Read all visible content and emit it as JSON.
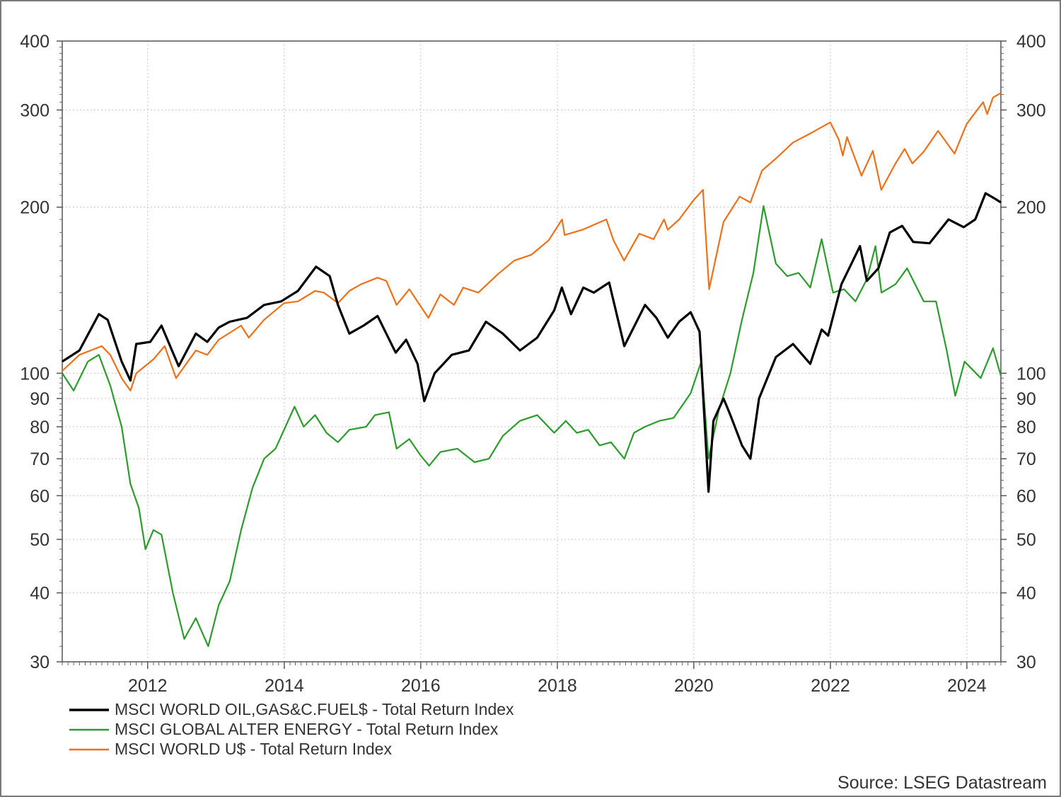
{
  "chart_data": {
    "type": "line",
    "title": "",
    "xlabel": "",
    "ylabel": "",
    "y_scale": "log",
    "ylim": [
      30,
      400
    ],
    "xlim": [
      "2010-10-01",
      "2024-07-01"
    ],
    "y_ticks": [
      "30",
      "40",
      "50",
      "60",
      "70",
      "80",
      "90",
      "100",
      "200",
      "300",
      "400"
    ],
    "x_ticks": [
      "2012",
      "2014",
      "2016",
      "2018",
      "2020",
      "2022",
      "2024"
    ],
    "grid": true,
    "legend_position": "bottom-left",
    "series": [
      {
        "name": "MSCI WORLD OIL,GAS&C.FUEL$ - Total Return Index",
        "color": "#000000",
        "points": [
          [
            "2010-10-01",
            105
          ],
          [
            "2011-01-01",
            110
          ],
          [
            "2011-04-15",
            128
          ],
          [
            "2011-06-01",
            125
          ],
          [
            "2011-08-15",
            105
          ],
          [
            "2011-10-01",
            97
          ],
          [
            "2011-11-01",
            113
          ],
          [
            "2012-01-15",
            114
          ],
          [
            "2012-03-15",
            122
          ],
          [
            "2012-06-15",
            103
          ],
          [
            "2012-09-15",
            118
          ],
          [
            "2012-11-15",
            114
          ],
          [
            "2013-01-15",
            121
          ],
          [
            "2013-03-15",
            124
          ],
          [
            "2013-06-15",
            126
          ],
          [
            "2013-09-15",
            133
          ],
          [
            "2013-12-15",
            135
          ],
          [
            "2014-03-15",
            141
          ],
          [
            "2014-06-20",
            156
          ],
          [
            "2014-09-01",
            150
          ],
          [
            "2014-10-15",
            133
          ],
          [
            "2014-12-15",
            118
          ],
          [
            "2015-03-01",
            122
          ],
          [
            "2015-05-15",
            127
          ],
          [
            "2015-08-20",
            109
          ],
          [
            "2015-10-15",
            115
          ],
          [
            "2015-12-15",
            104
          ],
          [
            "2016-01-20",
            89
          ],
          [
            "2016-03-15",
            100
          ],
          [
            "2016-06-15",
            108
          ],
          [
            "2016-09-15",
            110
          ],
          [
            "2016-12-15",
            124
          ],
          [
            "2017-03-15",
            118
          ],
          [
            "2017-06-15",
            110
          ],
          [
            "2017-09-15",
            116
          ],
          [
            "2017-12-15",
            130
          ],
          [
            "2018-01-25",
            143
          ],
          [
            "2018-03-15",
            128
          ],
          [
            "2018-05-20",
            143
          ],
          [
            "2018-07-15",
            140
          ],
          [
            "2018-10-05",
            146
          ],
          [
            "2018-12-25",
            112
          ],
          [
            "2019-04-15",
            133
          ],
          [
            "2019-06-15",
            126
          ],
          [
            "2019-08-15",
            116
          ],
          [
            "2019-10-15",
            124
          ],
          [
            "2019-12-15",
            129
          ],
          [
            "2020-02-01",
            119
          ],
          [
            "2020-03-20",
            61
          ],
          [
            "2020-04-15",
            82
          ],
          [
            "2020-06-08",
            90
          ],
          [
            "2020-07-15",
            84
          ],
          [
            "2020-09-15",
            74
          ],
          [
            "2020-10-30",
            70
          ],
          [
            "2020-12-15",
            90
          ],
          [
            "2021-03-15",
            107
          ],
          [
            "2021-06-15",
            113
          ],
          [
            "2021-09-15",
            104
          ],
          [
            "2021-11-15",
            120
          ],
          [
            "2021-12-20",
            117
          ],
          [
            "2022-03-01",
            145
          ],
          [
            "2022-06-08",
            170
          ],
          [
            "2022-07-15",
            147
          ],
          [
            "2022-09-15",
            155
          ],
          [
            "2022-11-15",
            180
          ],
          [
            "2023-01-20",
            185
          ],
          [
            "2023-03-20",
            173
          ],
          [
            "2023-06-15",
            172
          ],
          [
            "2023-09-25",
            190
          ],
          [
            "2023-12-15",
            184
          ],
          [
            "2024-02-15",
            190
          ],
          [
            "2024-04-10",
            212
          ],
          [
            "2024-06-01",
            207
          ],
          [
            "2024-07-01",
            204
          ]
        ]
      },
      {
        "name": "MSCI GLOBAL ALTER ENERGY - Total Return Index",
        "color": "#2a9d2a",
        "points": [
          [
            "2010-10-01",
            100
          ],
          [
            "2010-12-01",
            93
          ],
          [
            "2011-02-15",
            105
          ],
          [
            "2011-04-15",
            108
          ],
          [
            "2011-06-15",
            95
          ],
          [
            "2011-08-15",
            80
          ],
          [
            "2011-10-01",
            63
          ],
          [
            "2011-11-15",
            57
          ],
          [
            "2011-12-20",
            48
          ],
          [
            "2012-02-01",
            52
          ],
          [
            "2012-03-15",
            51
          ],
          [
            "2012-05-15",
            40
          ],
          [
            "2012-07-15",
            33
          ],
          [
            "2012-09-15",
            36
          ],
          [
            "2012-11-20",
            32
          ],
          [
            "2013-01-15",
            38
          ],
          [
            "2013-03-15",
            42
          ],
          [
            "2013-05-15",
            52
          ],
          [
            "2013-07-15",
            62
          ],
          [
            "2013-09-15",
            70
          ],
          [
            "2013-11-15",
            73
          ],
          [
            "2014-02-25",
            87
          ],
          [
            "2014-04-15",
            80
          ],
          [
            "2014-06-15",
            84
          ],
          [
            "2014-08-15",
            78
          ],
          [
            "2014-10-15",
            75
          ],
          [
            "2014-12-15",
            79
          ],
          [
            "2015-03-15",
            80
          ],
          [
            "2015-05-01",
            84
          ],
          [
            "2015-07-15",
            85
          ],
          [
            "2015-08-25",
            73
          ],
          [
            "2015-11-01",
            76
          ],
          [
            "2015-12-31",
            71
          ],
          [
            "2016-02-15",
            68
          ],
          [
            "2016-04-15",
            72
          ],
          [
            "2016-07-15",
            73
          ],
          [
            "2016-10-15",
            69
          ],
          [
            "2016-12-31",
            70
          ],
          [
            "2017-03-15",
            77
          ],
          [
            "2017-06-15",
            82
          ],
          [
            "2017-09-15",
            84
          ],
          [
            "2017-12-15",
            78
          ],
          [
            "2018-02-15",
            82
          ],
          [
            "2018-04-15",
            78
          ],
          [
            "2018-06-15",
            79
          ],
          [
            "2018-08-15",
            74
          ],
          [
            "2018-10-15",
            75
          ],
          [
            "2018-12-25",
            70
          ],
          [
            "2019-02-15",
            78
          ],
          [
            "2019-04-15",
            80
          ],
          [
            "2019-07-01",
            82
          ],
          [
            "2019-09-15",
            83
          ],
          [
            "2019-12-15",
            92
          ],
          [
            "2020-02-10",
            105
          ],
          [
            "2020-03-20",
            70
          ],
          [
            "2020-05-15",
            86
          ],
          [
            "2020-07-15",
            100
          ],
          [
            "2020-09-15",
            125
          ],
          [
            "2020-11-15",
            152
          ],
          [
            "2021-01-08",
            201
          ],
          [
            "2021-03-15",
            158
          ],
          [
            "2021-05-15",
            150
          ],
          [
            "2021-07-15",
            152
          ],
          [
            "2021-09-15",
            143
          ],
          [
            "2021-11-15",
            175
          ],
          [
            "2022-01-15",
            140
          ],
          [
            "2022-03-15",
            142
          ],
          [
            "2022-05-15",
            135
          ],
          [
            "2022-07-15",
            148
          ],
          [
            "2022-08-30",
            170
          ],
          [
            "2022-10-01",
            140
          ],
          [
            "2022-12-15",
            145
          ],
          [
            "2023-02-15",
            155
          ],
          [
            "2023-05-15",
            135
          ],
          [
            "2023-07-20",
            135
          ],
          [
            "2023-09-15",
            110
          ],
          [
            "2023-10-31",
            91
          ],
          [
            "2023-12-20",
            105
          ],
          [
            "2024-03-15",
            98
          ],
          [
            "2024-05-20",
            111
          ],
          [
            "2024-07-01",
            99
          ]
        ]
      },
      {
        "name": "MSCI WORLD U$ - Total Return Index",
        "color": "#f07018",
        "points": [
          [
            "2010-10-01",
            101
          ],
          [
            "2011-01-01",
            108
          ],
          [
            "2011-04-30",
            112
          ],
          [
            "2011-06-15",
            108
          ],
          [
            "2011-08-15",
            98
          ],
          [
            "2011-10-01",
            93
          ],
          [
            "2011-11-01",
            100
          ],
          [
            "2012-02-01",
            106
          ],
          [
            "2012-04-01",
            112
          ],
          [
            "2012-06-01",
            98
          ],
          [
            "2012-09-15",
            110
          ],
          [
            "2012-11-15",
            108
          ],
          [
            "2013-01-15",
            115
          ],
          [
            "2013-05-15",
            122
          ],
          [
            "2013-06-25",
            116
          ],
          [
            "2013-09-15",
            125
          ],
          [
            "2013-12-31",
            134
          ],
          [
            "2014-03-15",
            135
          ],
          [
            "2014-06-15",
            141
          ],
          [
            "2014-08-01",
            140
          ],
          [
            "2014-10-15",
            134
          ],
          [
            "2014-12-15",
            141
          ],
          [
            "2015-02-15",
            145
          ],
          [
            "2015-05-15",
            149
          ],
          [
            "2015-07-01",
            147
          ],
          [
            "2015-08-25",
            133
          ],
          [
            "2015-11-01",
            142
          ],
          [
            "2016-02-11",
            126
          ],
          [
            "2016-04-15",
            139
          ],
          [
            "2016-06-27",
            133
          ],
          [
            "2016-08-15",
            143
          ],
          [
            "2016-11-04",
            140
          ],
          [
            "2017-02-15",
            151
          ],
          [
            "2017-05-15",
            160
          ],
          [
            "2017-08-15",
            164
          ],
          [
            "2017-11-15",
            174
          ],
          [
            "2018-01-26",
            190
          ],
          [
            "2018-02-09",
            178
          ],
          [
            "2018-05-15",
            182
          ],
          [
            "2018-09-20",
            190
          ],
          [
            "2018-10-29",
            174
          ],
          [
            "2018-12-24",
            160
          ],
          [
            "2019-03-15",
            179
          ],
          [
            "2019-05-31",
            175
          ],
          [
            "2019-07-26",
            190
          ],
          [
            "2019-08-15",
            182
          ],
          [
            "2019-10-15",
            190
          ],
          [
            "2019-12-31",
            206
          ],
          [
            "2020-02-19",
            215
          ],
          [
            "2020-03-23",
            142
          ],
          [
            "2020-06-08",
            188
          ],
          [
            "2020-09-02",
            209
          ],
          [
            "2020-10-30",
            204
          ],
          [
            "2020-12-31",
            233
          ],
          [
            "2021-03-15",
            245
          ],
          [
            "2021-06-15",
            262
          ],
          [
            "2021-09-15",
            272
          ],
          [
            "2021-12-31",
            285
          ],
          [
            "2022-02-15",
            265
          ],
          [
            "2022-03-08",
            248
          ],
          [
            "2022-03-31",
            268
          ],
          [
            "2022-06-16",
            228
          ],
          [
            "2022-08-16",
            253
          ],
          [
            "2022-09-30",
            215
          ],
          [
            "2022-12-15",
            240
          ],
          [
            "2023-02-02",
            255
          ],
          [
            "2023-03-15",
            240
          ],
          [
            "2023-05-15",
            252
          ],
          [
            "2023-07-31",
            275
          ],
          [
            "2023-10-27",
            250
          ],
          [
            "2023-12-31",
            283
          ],
          [
            "2024-03-28",
            310
          ],
          [
            "2024-04-19",
            295
          ],
          [
            "2024-05-20",
            316
          ],
          [
            "2024-07-01",
            322
          ]
        ]
      }
    ],
    "source": "Source: LSEG Datastream"
  }
}
